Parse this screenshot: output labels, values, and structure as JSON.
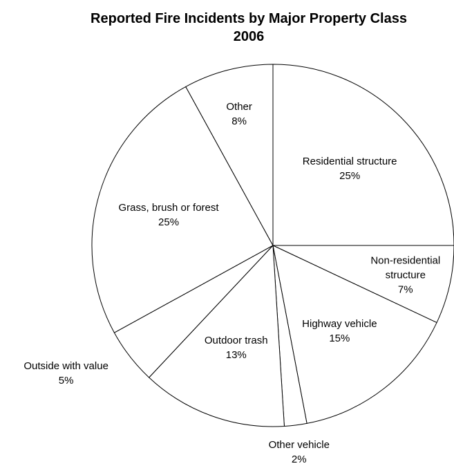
{
  "chart_data": {
    "type": "pie",
    "title": "Reported Fire Incidents by Major Property Class",
    "subtitle": "2006",
    "categories": [
      "Residential structure",
      "Non-residential structure",
      "Highway vehicle",
      "Other vehicle",
      "Outdoor trash",
      "Outside with value",
      "Grass, brush or forest",
      "Other"
    ],
    "values": [
      25,
      7,
      15,
      2,
      13,
      5,
      25,
      8
    ],
    "value_labels": [
      "25%",
      "7%",
      "15%",
      "2%",
      "13%",
      "5%",
      "25%",
      "8%"
    ],
    "color": "#ffffff"
  }
}
